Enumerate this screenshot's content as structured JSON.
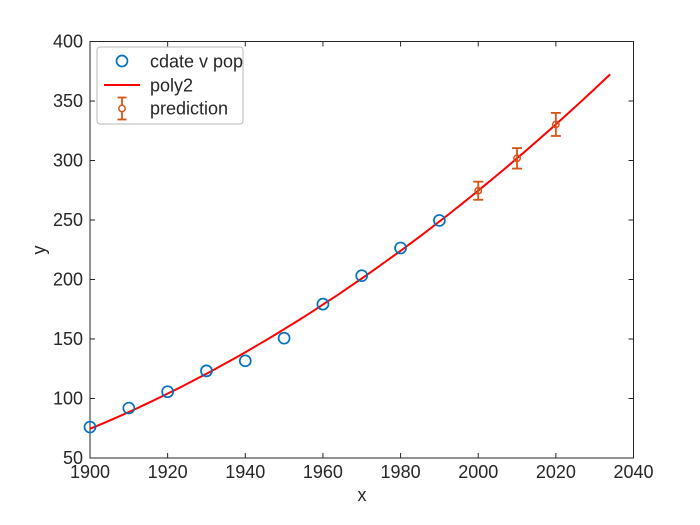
{
  "chart_data": {
    "type": "scatter+line+errorbar",
    "title": "",
    "xlabel": "x",
    "ylabel": "y",
    "xlim": [
      1900,
      2040
    ],
    "ylim": [
      50,
      400
    ],
    "xticks": [
      1900,
      1920,
      1940,
      1960,
      1980,
      2000,
      2020,
      2040
    ],
    "yticks": [
      50,
      100,
      150,
      200,
      250,
      300,
      350,
      400
    ],
    "grid": false,
    "legend_position": "upper-left",
    "colors": {
      "axis": "#262626",
      "data_blue": "#0072BD",
      "fit_red": "#FF0000",
      "prediction_orange": "#D95319",
      "legend_border": "#B9B9B9",
      "background": "#FFFFFF"
    },
    "series": [
      {
        "name": "cdate v pop",
        "type": "scatter",
        "marker": "open-circle",
        "color": "#0072BD",
        "x": [
          1900,
          1910,
          1920,
          1930,
          1940,
          1950,
          1960,
          1970,
          1980,
          1990
        ],
        "y": [
          75.995,
          91.972,
          105.711,
          123.203,
          131.669,
          150.697,
          179.323,
          203.212,
          226.505,
          249.633
        ]
      },
      {
        "name": "poly2",
        "type": "line",
        "color": "#FF0000",
        "x_start": 1900,
        "x_end": 2034,
        "poly": {
          "a": 61.7275,
          "b": 12.1544,
          "c2": 0.654533,
          "t0": 1890,
          "ts": 10,
          "formula": "y = a + b*t + c2*t^2, t = (x - t0)/ts"
        },
        "values_by_decade": {
          "1900": 74.5,
          "1910": 88.7,
          "1920": 104.1,
          "1930": 120.8,
          "1940": 138.9,
          "1950": 158.2,
          "1960": 178.9,
          "1970": 200.9,
          "1980": 224.1,
          "1990": 248.7,
          "2000": 274.6,
          "2010": 301.8,
          "2020": 330.3,
          "2030": 360.2,
          "2034": 372.4
        }
      },
      {
        "name": "prediction",
        "type": "errorbar",
        "marker": "open-circle",
        "color": "#D95319",
        "x": [
          2000,
          2010,
          2020
        ],
        "y": [
          274.6,
          301.8,
          330.3
        ],
        "yerr": [
          7.6,
          8.6,
          9.7
        ]
      }
    ]
  }
}
